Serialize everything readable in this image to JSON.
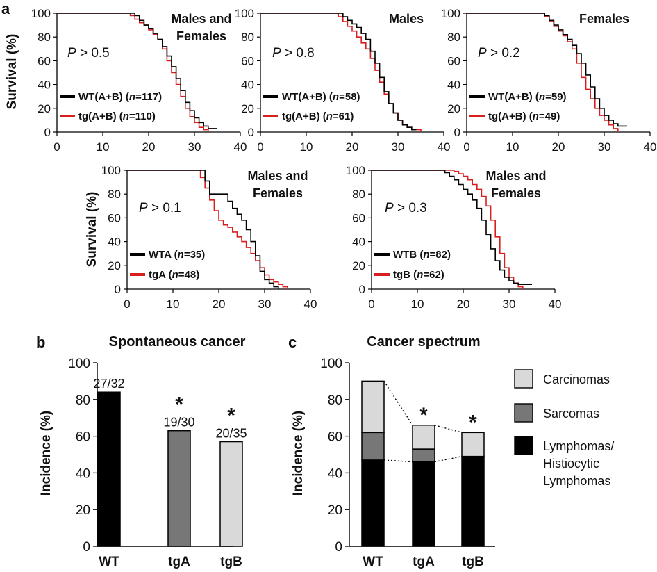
{
  "figure": {
    "panel_a_label": "a",
    "panel_b_label": "b",
    "panel_c_label": "c",
    "survival_axis_label": "Survival (%)",
    "incidence_axis_label": "Incidence (%)",
    "significance_mark": "*",
    "colors": {
      "wt": "#000000",
      "tg": "#d6201f",
      "sarcoma": "#777777",
      "carcinoma": "#d9d9d9"
    }
  },
  "chart_data": [
    {
      "type": "line",
      "id": "km1",
      "title": "Males and Females",
      "title_lines": [
        "Males and",
        "Females"
      ],
      "xlabel": "",
      "ylabel": "Survival (%)",
      "xlim": [
        0,
        40
      ],
      "ylim": [
        0,
        100
      ],
      "xticks": [
        "0",
        "10",
        "20",
        "30",
        "40"
      ],
      "yticks": [
        "0",
        "20",
        "40",
        "60",
        "80",
        "100"
      ],
      "p_label": "P",
      "p_text": "> 0.5",
      "series": [
        {
          "name": "WT(A+B)",
          "n_label": "n",
          "n_value": "=117",
          "color": "#000000",
          "x": [
            0,
            16,
            17,
            18,
            19,
            20,
            21,
            22,
            23,
            24,
            25,
            26,
            27,
            28,
            29,
            30,
            31,
            32,
            33,
            34,
            35
          ],
          "y": [
            100,
            100,
            98,
            94,
            90,
            87,
            83,
            78,
            72,
            64,
            55,
            45,
            35,
            25,
            18,
            12,
            8,
            5,
            3,
            3,
            3
          ]
        },
        {
          "name": "tg(A+B)",
          "n_label": "n",
          "n_value": "=110",
          "color": "#d6201f",
          "x": [
            0,
            15,
            16,
            17,
            18,
            19,
            20,
            21,
            22,
            23,
            24,
            25,
            26,
            27,
            28,
            29,
            30,
            31,
            32,
            33
          ],
          "y": [
            100,
            100,
            98,
            95,
            92,
            90,
            86,
            82,
            78,
            70,
            60,
            50,
            40,
            30,
            20,
            13,
            8,
            4,
            2,
            0
          ]
        }
      ]
    },
    {
      "type": "line",
      "id": "km2",
      "title": "Males",
      "title_lines": [
        "Males"
      ],
      "xlabel": "",
      "ylabel": "",
      "xlim": [
        0,
        40
      ],
      "ylim": [
        0,
        100
      ],
      "xticks": [
        "0",
        "10",
        "20",
        "30",
        "40"
      ],
      "yticks": [
        "0",
        "20",
        "40",
        "60",
        "80",
        "100"
      ],
      "p_label": "P",
      "p_text": "> 0.8",
      "series": [
        {
          "name": "WT(A+B)",
          "n_label": "n",
          "n_value": "=58",
          "color": "#000000",
          "x": [
            0,
            17,
            18,
            19,
            20,
            21,
            22,
            23,
            24,
            25,
            26,
            27,
            28,
            29,
            30,
            31,
            32,
            33,
            34
          ],
          "y": [
            100,
            100,
            97,
            94,
            91,
            88,
            83,
            78,
            68,
            58,
            46,
            34,
            24,
            16,
            10,
            6,
            4,
            2,
            2
          ]
        },
        {
          "name": "tg(A+B)",
          "n_label": "n",
          "n_value": "=61",
          "color": "#d6201f",
          "x": [
            0,
            16,
            17,
            18,
            19,
            20,
            21,
            22,
            23,
            24,
            25,
            26,
            27,
            28,
            29,
            30,
            31,
            32,
            33,
            34,
            35
          ],
          "y": [
            100,
            100,
            97,
            93,
            89,
            85,
            80,
            75,
            70,
            62,
            52,
            42,
            32,
            24,
            16,
            10,
            6,
            4,
            2,
            2,
            0
          ]
        }
      ]
    },
    {
      "type": "line",
      "id": "km3",
      "title": "Females",
      "title_lines": [
        "Females"
      ],
      "xlabel": "",
      "ylabel": "",
      "xlim": [
        0,
        40
      ],
      "ylim": [
        0,
        100
      ],
      "xticks": [
        "0",
        "10",
        "20",
        "30",
        "40"
      ],
      "yticks": [
        "0",
        "20",
        "40",
        "60",
        "80",
        "100"
      ],
      "p_label": "P",
      "p_text": "> 0.2",
      "series": [
        {
          "name": "WT(A+B)",
          "n_label": "n",
          "n_value": "=59",
          "color": "#000000",
          "x": [
            0,
            16,
            17,
            18,
            19,
            20,
            21,
            22,
            23,
            24,
            25,
            26,
            27,
            28,
            29,
            30,
            31,
            32,
            33,
            34,
            35
          ],
          "y": [
            100,
            100,
            98,
            94,
            90,
            86,
            82,
            78,
            73,
            66,
            58,
            48,
            38,
            28,
            20,
            14,
            10,
            7,
            5,
            5,
            5
          ]
        },
        {
          "name": "tg(A+B)",
          "n_label": "n",
          "n_value": "=49",
          "color": "#d6201f",
          "x": [
            0,
            16,
            17,
            18,
            19,
            20,
            21,
            22,
            23,
            24,
            25,
            26,
            27,
            28,
            29,
            30,
            31,
            32,
            33
          ],
          "y": [
            100,
            100,
            97,
            93,
            89,
            85,
            81,
            76,
            70,
            58,
            46,
            36,
            28,
            20,
            14,
            10,
            6,
            3,
            0
          ]
        }
      ]
    },
    {
      "type": "line",
      "id": "km4",
      "title": "Males and Females",
      "title_lines": [
        "Males and",
        "Females"
      ],
      "xlabel": "",
      "ylabel": "Survival (%)",
      "xlim": [
        0,
        40
      ],
      "ylim": [
        0,
        100
      ],
      "xticks": [
        "0",
        "10",
        "20",
        "30",
        "40"
      ],
      "yticks": [
        "0",
        "20",
        "40",
        "60",
        "80",
        "100"
      ],
      "p_label": "P",
      "p_text": "> 0.1",
      "series": [
        {
          "name": "WTA",
          "n_label": "n",
          "n_value": "=35",
          "color": "#000000",
          "x": [
            0,
            16,
            17,
            18,
            20,
            22,
            23,
            24,
            25,
            26,
            27,
            28,
            29,
            30,
            31,
            32,
            33
          ],
          "y": [
            100,
            100,
            91,
            80,
            80,
            74,
            68,
            63,
            58,
            50,
            40,
            28,
            15,
            8,
            5,
            2,
            0
          ]
        },
        {
          "name": "tgA",
          "n_label": "n",
          "n_value": "=48",
          "color": "#d6201f",
          "x": [
            0,
            15,
            16,
            17,
            18,
            19,
            20,
            21,
            22,
            23,
            24,
            25,
            26,
            27,
            28,
            29,
            30,
            31,
            32,
            33,
            34,
            35
          ],
          "y": [
            100,
            100,
            94,
            85,
            75,
            66,
            58,
            54,
            52,
            48,
            44,
            40,
            35,
            30,
            24,
            18,
            12,
            8,
            6,
            4,
            2,
            0
          ]
        }
      ]
    },
    {
      "type": "line",
      "id": "km5",
      "title": "Males and Females",
      "title_lines": [
        "Males and",
        "Females"
      ],
      "xlabel": "",
      "ylabel": "",
      "xlim": [
        0,
        40
      ],
      "ylim": [
        0,
        100
      ],
      "xticks": [
        "0",
        "10",
        "20",
        "30",
        "40"
      ],
      "yticks": [
        "0",
        "20",
        "40",
        "60",
        "80",
        "100"
      ],
      "p_label": "P",
      "p_text": "> 0.3",
      "series": [
        {
          "name": "WTB",
          "n_label": "n",
          "n_value": "=82",
          "color": "#000000",
          "x": [
            0,
            15,
            16,
            17,
            18,
            19,
            20,
            21,
            22,
            23,
            24,
            25,
            26,
            27,
            28,
            29,
            30,
            31,
            32,
            33,
            34,
            35
          ],
          "y": [
            100,
            100,
            98,
            95,
            92,
            88,
            84,
            80,
            75,
            68,
            58,
            46,
            34,
            24,
            16,
            10,
            7,
            5,
            4,
            4,
            4,
            4
          ]
        },
        {
          "name": "tgB",
          "n_label": "n",
          "n_value": "=62",
          "color": "#d6201f",
          "x": [
            0,
            17,
            18,
            19,
            20,
            21,
            22,
            23,
            24,
            25,
            26,
            27,
            28,
            29,
            30,
            31,
            32,
            33
          ],
          "y": [
            100,
            100,
            99,
            97,
            95,
            92,
            88,
            84,
            78,
            70,
            58,
            44,
            30,
            18,
            10,
            5,
            2,
            0
          ]
        }
      ]
    },
    {
      "type": "bar",
      "id": "bar_b",
      "title": "Spontaneous cancer",
      "ylabel": "Incidence (%)",
      "ylim": [
        0,
        100
      ],
      "yticks": [
        "0",
        "20",
        "40",
        "60",
        "80",
        "100"
      ],
      "categories": [
        "WT",
        "tgA",
        "tgB"
      ],
      "values": [
        84,
        63,
        57
      ],
      "value_labels": [
        "27/32",
        "19/30",
        "20/35"
      ],
      "significant": [
        false,
        true,
        true
      ],
      "colors": [
        "#000000",
        "#777777",
        "#d9d9d9"
      ]
    },
    {
      "type": "bar",
      "id": "bar_c",
      "stacked": true,
      "title": "Cancer spectrum",
      "ylabel": "Incidence (%)",
      "ylim": [
        0,
        100
      ],
      "yticks": [
        "0",
        "20",
        "40",
        "60",
        "80",
        "100"
      ],
      "categories": [
        "WT",
        "tgA",
        "tgB"
      ],
      "significant": [
        false,
        true,
        true
      ],
      "series": [
        {
          "name": "Lymphomas/ Histiocytic Lymphomas",
          "legend_lines": [
            "Lymphomas/",
            "Histiocytic",
            "Lymphomas"
          ],
          "color": "#000000",
          "values": [
            47,
            46,
            49
          ]
        },
        {
          "name": "Sarcomas",
          "legend_lines": [
            "Sarcomas"
          ],
          "color": "#777777",
          "values": [
            15,
            7,
            0
          ]
        },
        {
          "name": "Carcinomas",
          "legend_lines": [
            "Carcinomas"
          ],
          "color": "#d9d9d9",
          "values": [
            28,
            13,
            13
          ]
        }
      ],
      "legend_order": [
        2,
        1,
        0
      ]
    }
  ]
}
